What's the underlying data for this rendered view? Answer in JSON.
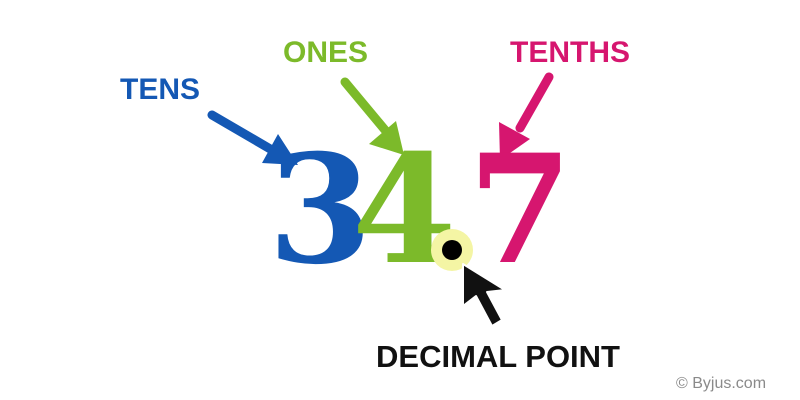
{
  "number": {
    "tens_digit": "3",
    "ones_digit": "4",
    "tenths_digit": "7"
  },
  "labels": {
    "tens": "TENS",
    "ones": "ONES",
    "tenths": "TENTHS",
    "decimal_point": "DECIMAL POINT"
  },
  "credit": "© Byjus.com",
  "colors": {
    "tens": "#1458b4",
    "ones": "#7cba2a",
    "tenths": "#d6166f",
    "decimal_point_glow": "#f4f5a4",
    "decimal_point_dot": "#000000",
    "arrow_black": "#111111",
    "credit_text": "#8a8a8a"
  },
  "icons": {
    "tens_arrow": "arrow-down-right-icon",
    "ones_arrow": "arrow-down-right-icon",
    "tenths_arrow": "arrow-down-left-icon",
    "decimal_pointer": "cursor-arrow-icon"
  }
}
